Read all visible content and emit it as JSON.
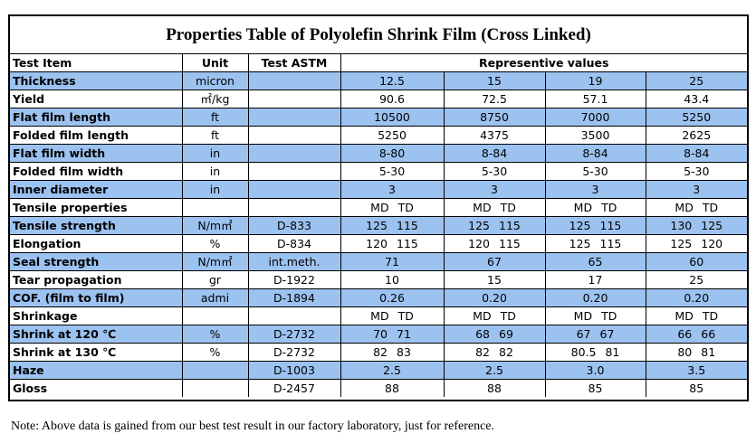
{
  "title": "Properties Table of Polyolefin Shrink Film  (Cross Linked)",
  "header": {
    "test_item": "Test Item",
    "unit": "Unit",
    "test_astm": "Test  ASTM",
    "values": "Representive values"
  },
  "rows": [
    {
      "item": "Thickness",
      "unit": "micron",
      "astm": "",
      "v": [
        "12.5",
        "15",
        "19",
        "25"
      ],
      "blue": true
    },
    {
      "item": "Yield",
      "unit": "㎡/kg",
      "astm": "",
      "v": [
        "90.6",
        "72.5",
        "57.1",
        "43.4"
      ],
      "blue": false
    },
    {
      "item": "Flat film length",
      "unit": "ft",
      "astm": "",
      "v": [
        "10500",
        "8750",
        "7000",
        "5250"
      ],
      "blue": true
    },
    {
      "item": "Folded film length",
      "unit": "ft",
      "astm": "",
      "v": [
        "5250",
        "4375",
        "3500",
        "2625"
      ],
      "blue": false
    },
    {
      "item": "Flat film width",
      "unit": "in",
      "astm": "",
      "v": [
        "8-80",
        "8-84",
        "8-84",
        "8-84"
      ],
      "blue": true
    },
    {
      "item": "Folded film width",
      "unit": "in",
      "astm": "",
      "v": [
        "5-30",
        "5-30",
        "5-30",
        "5-30"
      ],
      "blue": false
    },
    {
      "item": "Inner diameter",
      "unit": "in",
      "astm": "",
      "v": [
        "3",
        "3",
        "3",
        "3"
      ],
      "blue": true
    },
    {
      "item": "Tensile properties",
      "unit": "",
      "astm": "",
      "v": [
        [
          "MD",
          "TD"
        ],
        [
          "MD",
          "TD"
        ],
        [
          "MD",
          "TD"
        ],
        [
          "MD",
          "TD"
        ]
      ],
      "blue": false
    },
    {
      "item": "Tensile strength",
      "unit": "N/m㎡",
      "astm": "D-833",
      "v": [
        [
          "125",
          "115"
        ],
        [
          "125",
          "115"
        ],
        [
          "125",
          "115"
        ],
        [
          "130",
          "125"
        ]
      ],
      "blue": true
    },
    {
      "item": "Elongation",
      "unit": "%",
      "astm": "D-834",
      "v": [
        [
          "120",
          "115"
        ],
        [
          "120",
          "115"
        ],
        [
          "125",
          "115"
        ],
        [
          "125",
          "120"
        ]
      ],
      "blue": false
    },
    {
      "item": "Seal strength",
      "unit": "N/m㎡",
      "astm": "int.meth.",
      "v": [
        "71",
        "67",
        "65",
        "60"
      ],
      "blue": true
    },
    {
      "item": "Tear propagation",
      "unit": "gr",
      "astm": "D-1922",
      "v": [
        "10",
        "15",
        "17",
        "25"
      ],
      "blue": false
    },
    {
      "item": "COF. (film to film)",
      "unit": "admi",
      "astm": "D-1894",
      "v": [
        "0.26",
        "0.20",
        "0.20",
        "0.20"
      ],
      "blue": true
    },
    {
      "item": "Shrinkage",
      "unit": "",
      "astm": "",
      "v": [
        [
          "MD",
          "TD"
        ],
        [
          "MD",
          "TD"
        ],
        [
          "MD",
          "TD"
        ],
        [
          "MD",
          "TD"
        ]
      ],
      "blue": false
    },
    {
      "item": "Shrink at 120 ℃",
      "unit": "%",
      "astm": "D-2732",
      "v": [
        [
          "70",
          "71"
        ],
        [
          "68",
          "69"
        ],
        [
          "67",
          "67"
        ],
        [
          "66",
          "66"
        ]
      ],
      "blue": true
    },
    {
      "item": "Shrink at 130 ℃",
      "unit": "%",
      "astm": "D-2732",
      "v": [
        [
          "82",
          "83"
        ],
        [
          "82",
          "82"
        ],
        [
          "80.5",
          "81"
        ],
        [
          "80",
          "81"
        ]
      ],
      "blue": false
    },
    {
      "item": "Haze",
      "unit": "",
      "astm": "D-1003",
      "v": [
        "2.5",
        "2.5",
        "3.0",
        "3.5"
      ],
      "blue": true
    },
    {
      "item": "Gloss",
      "unit": "",
      "astm": "D-2457",
      "v": [
        "88",
        "88",
        "85",
        "85"
      ],
      "blue": false
    }
  ],
  "colors": {
    "row_highlight": "#9cc2f0",
    "border": "#000000"
  },
  "note": "Note: Above data is gained from our best test result in our factory laboratory,  just for reference."
}
